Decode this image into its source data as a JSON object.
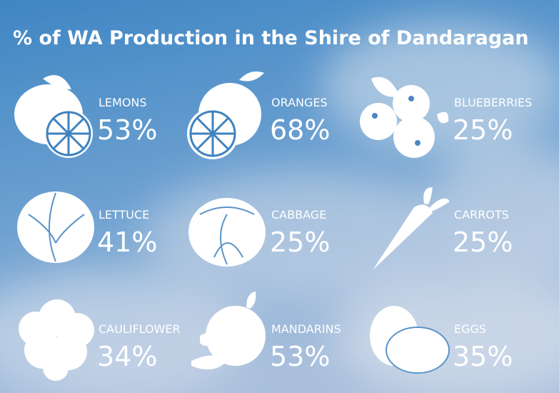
{
  "title": "% of WA Production in the Shire of Dandaragan",
  "items": [
    {
      "name": "LEMONS",
      "value": "53%"
    },
    {
      "name": "ORANGES",
      "value": "68%"
    },
    {
      "name": "BLUEBERRIES",
      "value": "25%"
    },
    {
      "name": "LETTUCE",
      "value": "41%"
    },
    {
      "name": "CABBAGE",
      "value": "25%"
    },
    {
      "name": "CARROTS",
      "value": "25%"
    },
    {
      "name": "CAULIFLOWER",
      "value": "34%"
    },
    {
      "name": "MANDARINS",
      "value": "53%"
    },
    {
      "name": "EGGS",
      "value": "35%"
    }
  ]
}
